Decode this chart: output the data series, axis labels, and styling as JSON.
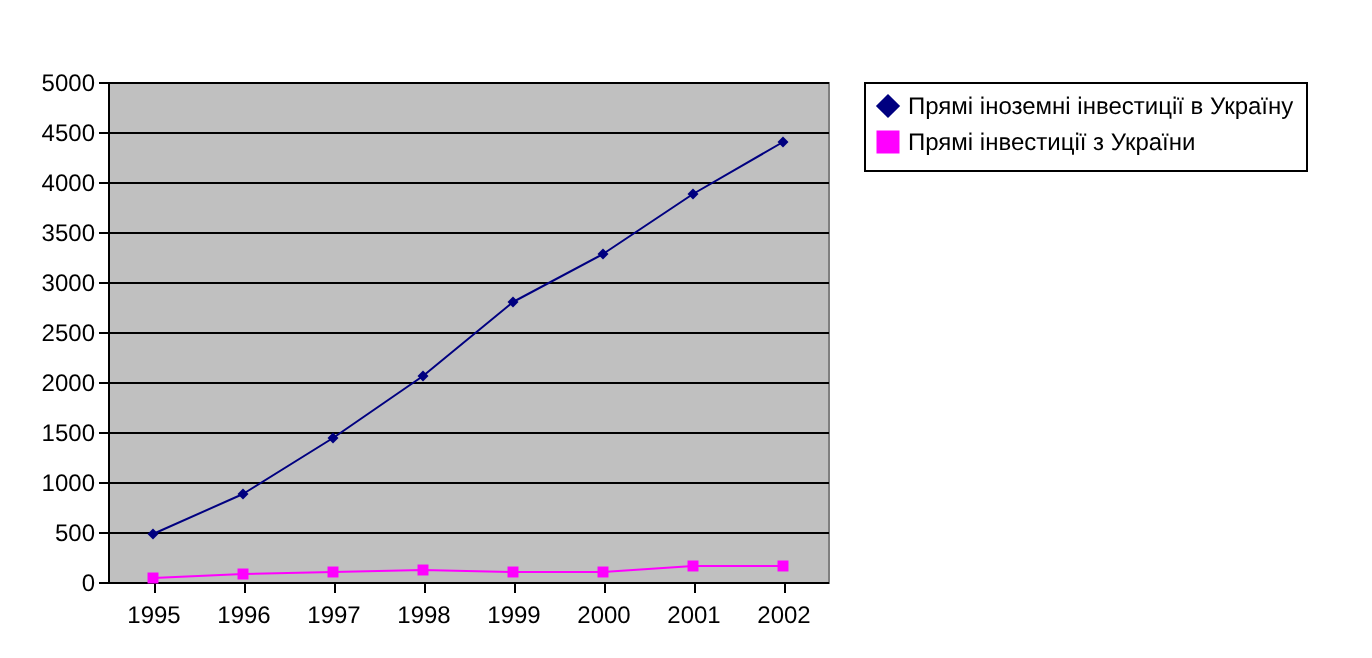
{
  "chart_data": {
    "type": "line",
    "categories": [
      "1995",
      "1996",
      "1997",
      "1998",
      "1999",
      "2000",
      "2001",
      "2002"
    ],
    "series": [
      {
        "name": "Прямі іноземні інвестиції в Україну",
        "color": "#000080",
        "marker": "diamond",
        "values": [
          480,
          880,
          1440,
          2060,
          2800,
          3280,
          3880,
          4400
        ]
      },
      {
        "name": "Прямі інвестиції з України",
        "color": "#ff00ff",
        "marker": "square",
        "values": [
          40,
          80,
          100,
          120,
          100,
          100,
          160,
          160
        ]
      }
    ],
    "ylim": [
      0,
      5000
    ],
    "yticks": [
      0,
      500,
      1000,
      1500,
      2000,
      2500,
      3000,
      3500,
      4000,
      4500,
      5000
    ],
    "grid": "y",
    "legend": "right"
  }
}
